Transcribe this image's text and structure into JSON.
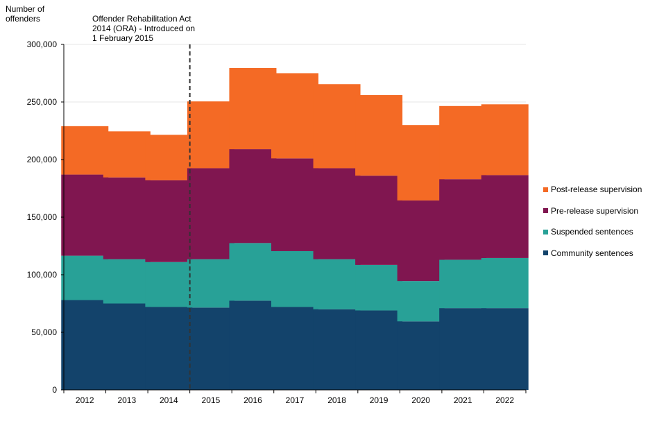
{
  "chart_data": {
    "type": "bar",
    "stacked": true,
    "ylabel": "Number of offenders",
    "annotation": "Offender Rehabilitation Act 2014 (ORA) - Introduced on 1 February 2015",
    "categories": [
      "2012",
      "2013",
      "2014",
      "2015",
      "2016",
      "2017",
      "2018",
      "2019",
      "2020",
      "2021",
      "2022"
    ],
    "y_ticks": [
      "0",
      "50,000",
      "100,000",
      "150,000",
      "200,000",
      "250,000",
      "300,000"
    ],
    "ylim": [
      0,
      300000
    ],
    "grid": true,
    "legend_position": "right",
    "series": [
      {
        "name": "Community sentences",
        "color": "#13436b",
        "values": [
          78000,
          75000,
          72000,
          71500,
          77500,
          72000,
          70000,
          69000,
          59500,
          71000,
          71000
        ]
      },
      {
        "name": "Suspended sentences",
        "color": "#28a197",
        "values": [
          38500,
          38500,
          39000,
          42000,
          50000,
          48500,
          43500,
          39500,
          35000,
          42000,
          43500
        ]
      },
      {
        "name": "Pre-release supervision",
        "color": "#801650",
        "values": [
          70500,
          71000,
          71000,
          79000,
          81500,
          80500,
          79000,
          77500,
          70000,
          70000,
          72000
        ]
      },
      {
        "name": "Post-release supervision",
        "color": "#f46a25",
        "values": [
          42000,
          40000,
          39500,
          58000,
          70500,
          74000,
          73000,
          70000,
          65500,
          63500,
          61500
        ]
      }
    ]
  }
}
